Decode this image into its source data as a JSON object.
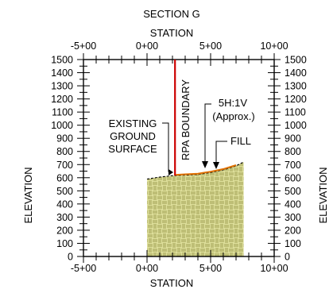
{
  "title": "SECTION G",
  "top_axis_label": "STATION",
  "bottom_axis_label": "STATION",
  "left_axis_label": "ELEVATION",
  "right_axis_label": "ELEVATION",
  "x_ticks": [
    "-5+00",
    "0+00",
    "5+00",
    "10+00"
  ],
  "y_ticks": [
    "0",
    "100",
    "200",
    "300",
    "400",
    "500",
    "600",
    "700",
    "800",
    "900",
    "1000",
    "1100",
    "1200",
    "1300",
    "1400",
    "1500"
  ],
  "x_range_stations": [
    -5,
    10
  ],
  "y_range": [
    0,
    1500
  ],
  "labels": {
    "existing_ground": [
      "EXISTING",
      "GROUND",
      "SURFACE"
    ],
    "rpa_boundary": "RPA BOUNDARY",
    "slope": [
      "5H:1V",
      "(Approx.)"
    ],
    "fill": "FILL"
  },
  "ground_profile_stations": [
    0,
    1,
    2,
    3,
    4,
    5,
    6,
    7,
    7.6
  ],
  "ground_profile_elevations": [
    590,
    605,
    615,
    620,
    625,
    640,
    660,
    690,
    720
  ],
  "rpa_boundary_station": 2.2,
  "colors": {
    "boundary": "#cc0000",
    "fill_line": "#e07000",
    "ground_hatch": "#ddde9a",
    "hatch_lines": "#909040"
  }
}
